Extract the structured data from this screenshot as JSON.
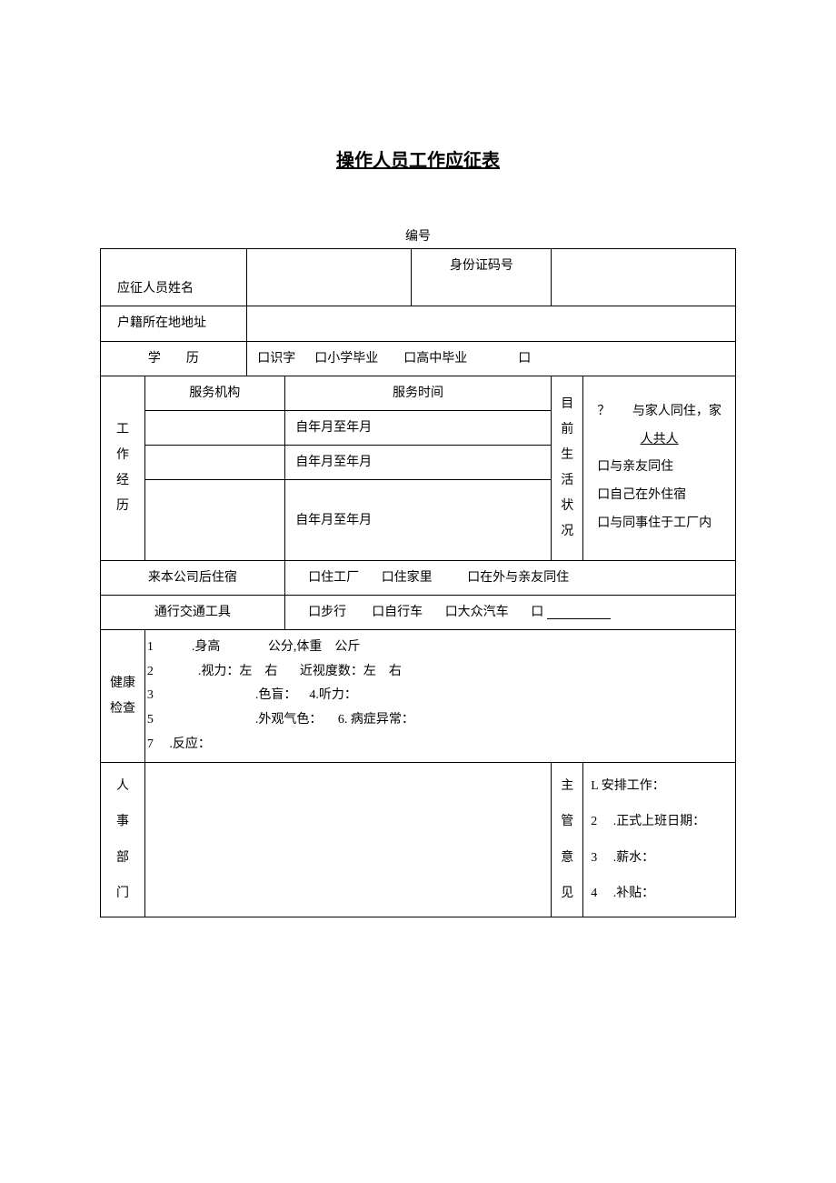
{
  "title": "操作人员工作应征表",
  "serial_label": "编号",
  "labels": {
    "name": "应征人员姓名",
    "id_number": "身份证码号",
    "address": "户籍所在地地址",
    "education": "学　　历",
    "edu_opt1": "口识字",
    "edu_opt2": "口小学毕业",
    "edu_opt3": "口高中毕业",
    "edu_opt4": "口",
    "work_history": "工\n作\n经\n历",
    "service_org": "服务机构",
    "service_time": "服务时间",
    "period1": "自年月至年月",
    "period2": "自年月至年月",
    "period3": "自年月至年月",
    "living_status": "目\n前\n生\n活\n状\n况",
    "living_line1_q": "？",
    "living_line1_text": "与家人同住，家",
    "living_line1_under": "人共人",
    "living_opt2": "口与亲友同住",
    "living_opt3": "口自己在外住宿",
    "living_opt4": "口与同事住于工厂内",
    "housing_after": "来本公司后住宿",
    "housing_opt1": "口住工厂",
    "housing_opt2": "口住家里",
    "housing_opt3": "口在外与亲友同住",
    "transport": "通行交通工具",
    "trans_opt1": "口步行",
    "trans_opt2": "口自行车",
    "trans_opt3": "口大众汽车",
    "trans_opt4": "口",
    "health_check": "健康\n检查",
    "health_l1a": "1",
    "health_l1b": ".身高",
    "health_l1c": "公分,体重　公斤",
    "health_l2a": "2",
    "health_l2b": ".视力：左　右",
    "health_l2c": "近视度数：左　右",
    "health_l3a": "3",
    "health_l3b": ".色盲：",
    "health_l3c": "4.听力：",
    "health_l4a": "5",
    "health_l4b": ".外观气色：",
    "health_l4c": "6. 病症异常：",
    "health_l5a": "7",
    "health_l5b": ".反应：",
    "hr_dept": "人\n事\n部\n门",
    "manager_opinion": "主\n管\n意\n见",
    "op1a": "L",
    "op1b": "安排工作：",
    "op2a": "2",
    "op2b": ".正式上班日期：",
    "op3a": "3",
    "op3b": ".薪水：",
    "op4a": "4",
    "op4b": ".补贴："
  }
}
